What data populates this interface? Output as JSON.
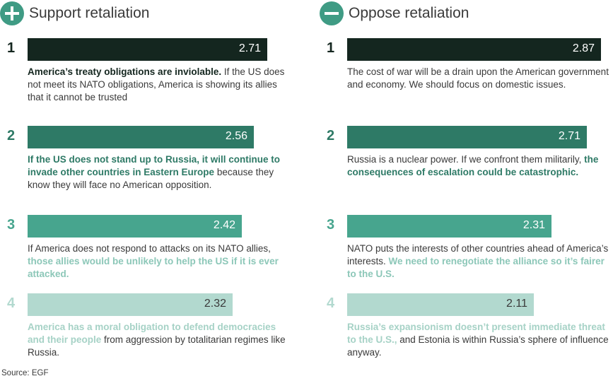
{
  "source": "Source: EGF",
  "chart_data": [
    {
      "type": "bar",
      "title": "Support retaliation",
      "xlim": [
        0,
        3.0
      ],
      "items": [
        {
          "rank": "1",
          "value": 2.71,
          "value_label": "2.71",
          "color": "#14261f",
          "highlight": "America’s treaty obligations are inviolable.",
          "highlight_color": "#14261f",
          "text": " If the US does not meet its NATO obligations, America is showing its allies that it cannot be trusted",
          "text_pos": "after"
        },
        {
          "rank": "2",
          "value": 2.56,
          "value_label": "2.56",
          "color": "#2e7a66",
          "highlight": "If the US does not stand up to Russia, it will continue to invade other countries in Eastern Europe",
          "highlight_color": "#2e7a66",
          "text": " because they know they will face no American opposition.",
          "text_pos": "after"
        },
        {
          "rank": "3",
          "value": 2.42,
          "value_label": "2.42",
          "color": "#47a58e",
          "highlight": "those allies would be unlikely to help the US if it is ever attacked.",
          "highlight_color": "#8cc7b8",
          "text": "If America does not respond to attacks on its NATO allies, ",
          "text_pos": "before"
        },
        {
          "rank": "4",
          "value": 2.32,
          "value_label": "2.32",
          "color": "#b2d9cf",
          "highlight": "America has a moral obligation to defend democracies and their people",
          "highlight_color": "#a6d2c6",
          "text": " from aggression by totalitarian regimes like Russia.",
          "text_pos": "after"
        }
      ]
    },
    {
      "type": "bar",
      "title": "Oppose retaliation",
      "xlim": [
        0,
        3.0
      ],
      "items": [
        {
          "rank": "1",
          "value": 2.87,
          "value_label": "2.87",
          "color": "#14261f",
          "highlight": "",
          "highlight_color": "#14261f",
          "text": "The cost of war will be a drain upon the American government and economy. We should focus on domestic issues.",
          "text_pos": "before"
        },
        {
          "rank": "2",
          "value": 2.71,
          "value_label": "2.71",
          "color": "#2e7a66",
          "highlight": "the consequences of escalation could be catastrophic.",
          "highlight_color": "#2e7a66",
          "text": "Russia is a nuclear power. If we confront them militarily, ",
          "text_pos": "before"
        },
        {
          "rank": "3",
          "value": 2.31,
          "value_label": "2.31",
          "color": "#47a58e",
          "highlight": "We need to renegotiate the alliance so it’s fairer to the U.S.",
          "highlight_color": "#8cc7b8",
          "text": "NATO puts the interests of other countries ahead of America’s interests. ",
          "text_pos": "before"
        },
        {
          "rank": "4",
          "value": 2.11,
          "value_label": "2.11",
          "color": "#b2d9cf",
          "highlight": "Russia’s expansionism doesn’t present immediate threat to the U.S.,",
          "highlight_color": "#a6d2c6",
          "text": " and Estonia is within Russia’s sphere of influence anyway.",
          "text_pos": "after"
        }
      ]
    }
  ]
}
